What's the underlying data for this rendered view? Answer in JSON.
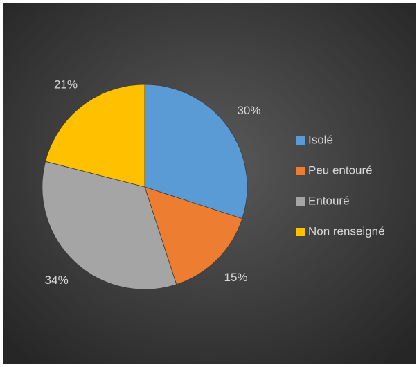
{
  "chart_data": {
    "type": "pie",
    "categories": [
      "Isolé",
      "Peu entouré",
      "Entouré",
      "Non renseigné"
    ],
    "values": [
      30,
      15,
      34,
      21
    ],
    "value_labels": [
      "30%",
      "15%",
      "34%",
      "21%"
    ],
    "colors": [
      "#5b9bd5",
      "#ed7d31",
      "#a5a5a5",
      "#ffc000"
    ],
    "legend": "right"
  }
}
